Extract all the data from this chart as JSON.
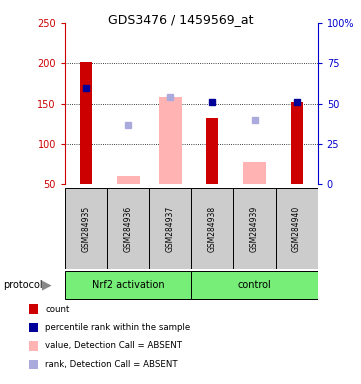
{
  "title": "GDS3476 / 1459569_at",
  "samples": [
    "GSM284935",
    "GSM284936",
    "GSM284937",
    "GSM284938",
    "GSM284939",
    "GSM284940"
  ],
  "red_bars": [
    202,
    null,
    null,
    132,
    null,
    152
  ],
  "blue_squares": [
    170,
    null,
    null,
    152,
    null,
    152
  ],
  "pink_bars": [
    null,
    60,
    158,
    null,
    78,
    null
  ],
  "lightblue_squares": [
    null,
    124,
    158,
    null,
    130,
    null
  ],
  "ylim_left": [
    50,
    250
  ],
  "ylim_right": [
    0,
    100
  ],
  "yticks_left": [
    50,
    100,
    150,
    200,
    250
  ],
  "yticks_right": [
    0,
    25,
    50,
    75,
    100
  ],
  "yticklabels_right": [
    "0",
    "25",
    "50",
    "75",
    "100%"
  ],
  "left_axis_color": "#cc0000",
  "right_axis_color": "#0000cc",
  "red_bar_color": "#cc0000",
  "pink_bar_color": "#ffb3b3",
  "blue_sq_color": "#000099",
  "lightblue_sq_color": "#aaaadd",
  "sample_box_color": "#cccccc",
  "protocol_box_color": "#77ee77",
  "nrf2_label": "Nrf2 activation",
  "control_label": "control",
  "protocol_label": "protocol",
  "legend_items": [
    {
      "label": "count",
      "color": "#cc0000"
    },
    {
      "label": "percentile rank within the sample",
      "color": "#000099"
    },
    {
      "label": "value, Detection Call = ABSENT",
      "color": "#ffb3b3"
    },
    {
      "label": "rank, Detection Call = ABSENT",
      "color": "#aaaadd"
    }
  ]
}
